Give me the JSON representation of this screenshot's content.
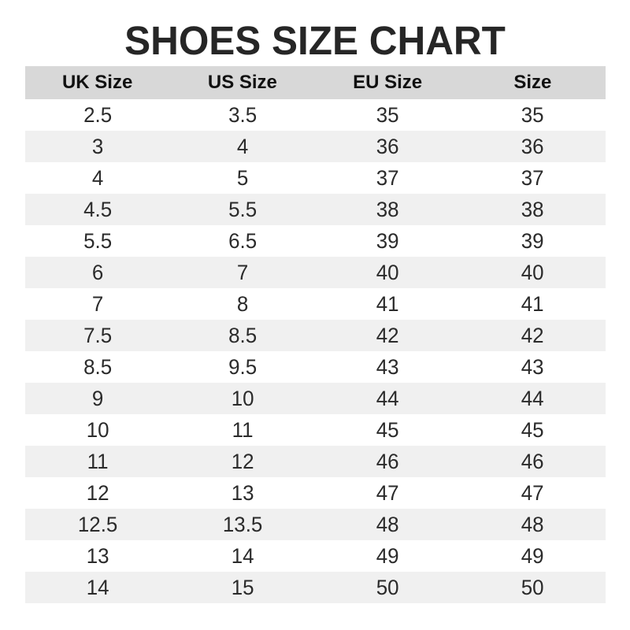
{
  "page": {
    "title": "SHOES SIZE CHART"
  },
  "chart_data": {
    "type": "table",
    "title": "SHOES SIZE CHART",
    "columns": [
      "UK Size",
      "US Size",
      "EU Size",
      "Size"
    ],
    "rows": [
      [
        "2.5",
        "3.5",
        "35",
        "35"
      ],
      [
        "3",
        "4",
        "36",
        "36"
      ],
      [
        "4",
        "5",
        "37",
        "37"
      ],
      [
        "4.5",
        "5.5",
        "38",
        "38"
      ],
      [
        "5.5",
        "6.5",
        "39",
        "39"
      ],
      [
        "6",
        "7",
        "40",
        "40"
      ],
      [
        "7",
        "8",
        "41",
        "41"
      ],
      [
        "7.5",
        "8.5",
        "42",
        "42"
      ],
      [
        "8.5",
        "9.5",
        "43",
        "43"
      ],
      [
        "9",
        "10",
        "44",
        "44"
      ],
      [
        "10",
        "11",
        "45",
        "45"
      ],
      [
        "11",
        "12",
        "46",
        "46"
      ],
      [
        "12",
        "13",
        "47",
        "47"
      ],
      [
        "12.5",
        "13.5",
        "48",
        "48"
      ],
      [
        "13",
        "14",
        "49",
        "49"
      ],
      [
        "14",
        "15",
        "50",
        "50"
      ]
    ],
    "layout": {
      "zebra_striping": true,
      "header_background": "#d8d8d8",
      "stripe_background": "#f0f0f0"
    }
  },
  "colors": {
    "header_bg": "#d8d8d8",
    "stripe_bg": "#f0f0f0",
    "title": "#262626",
    "cell_text": "#2b2b2b"
  }
}
